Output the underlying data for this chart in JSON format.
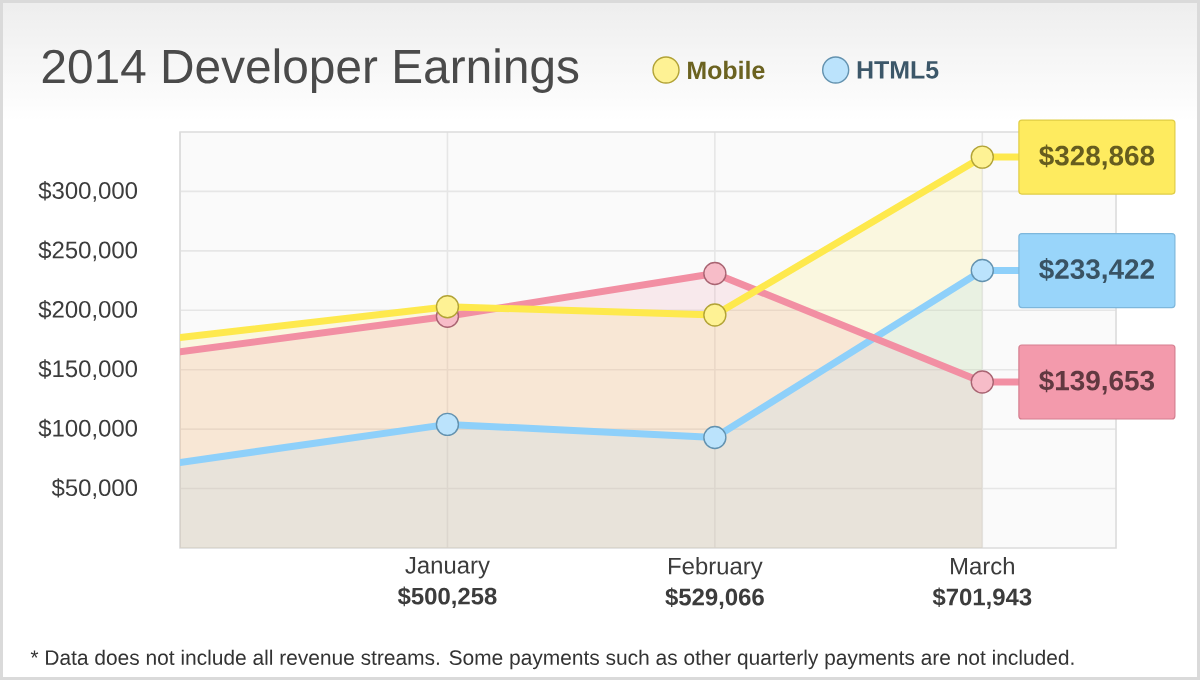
{
  "chart_data": {
    "type": "area",
    "title": "2014 Developer Earnings",
    "categories": [
      null,
      "January **$500,258**",
      "February **$529,066**",
      "March **$701,943**"
    ],
    "series": [
      {
        "name": "Mobile",
        "color": "#fee94d",
        "values": [
          177000,
          203000,
          196000,
          328868
        ],
        "value_labels": [
          null,
          null,
          null,
          "$328,868"
        ]
      },
      {
        "color": "#f28fa3",
        "values": [
          165000,
          195000,
          231000,
          139653
        ],
        "value_labels": [
          null,
          null,
          null,
          "$139,653"
        ]
      },
      {
        "name": "HTML5",
        "color": "#8ed0fa",
        "values": [
          72000,
          104000,
          93000,
          233422
        ],
        "value_labels": [
          null,
          null,
          null,
          "$233,422"
        ]
      }
    ],
    "ylim": [
      0,
      350000
    ],
    "yticks": [
      {
        "value": 50000,
        "label": "$50,000"
      },
      {
        "value": 100000,
        "label": "$100,000"
      },
      {
        "value": 150000,
        "label": "$150,000"
      },
      {
        "value": 200000,
        "label": "$200,000"
      },
      {
        "value": 250000,
        "label": "$250,000"
      },
      {
        "value": 300000,
        "label": "$300,000"
      }
    ],
    "grid": true,
    "legend": "top right",
    "marker": "circle",
    "line_style": "solid",
    "annotations": [
      "* Data does not include all revenue streams.  Some payments such as other quarterly payments are not included."
    ]
  }
}
